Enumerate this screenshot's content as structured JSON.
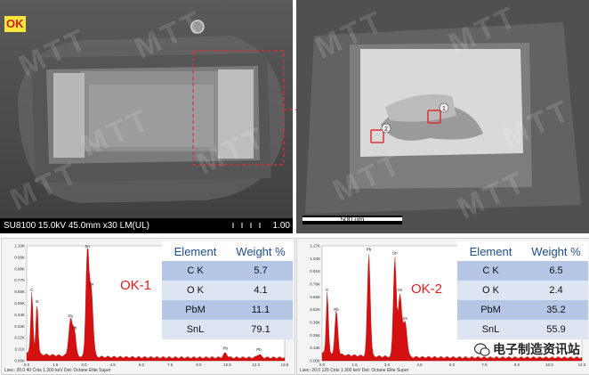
{
  "sem_left": {
    "badge": "OK",
    "info": "SU8100 15.0kV 45.0mm x30 LM(UL)",
    "mag_right": "1.00"
  },
  "sem_right": {
    "scale_label": "500 um",
    "marker_1": "1",
    "marker_2": "2"
  },
  "spectrum_1": {
    "label": "OK-1",
    "y_ticks": [
      "1.10K",
      "0.99K",
      "0.88K",
      "0.77K",
      "0.66K",
      "0.55K",
      "0.44K",
      "0.33K",
      "0.22K",
      "0.11K",
      "0.00K"
    ],
    "x_ticks": [
      "0.0",
      "1.5",
      "3.0",
      "4.5",
      "6.0",
      "7.5",
      "9.0",
      "10.5",
      "12.0",
      "13.5"
    ],
    "peak_labels": [
      "Sn",
      "Sn",
      "C",
      "O",
      "Pb",
      "Pb",
      "Pb",
      "Pb"
    ],
    "footer": "Lsec: 20.0     40 Cnts     1.300 keV     Det: Octane Elite Super",
    "table": {
      "col_element": "Element",
      "col_weight": "Weight %",
      "rows": [
        {
          "element": "C K",
          "weight": "5.7"
        },
        {
          "element": "O K",
          "weight": "4.1"
        },
        {
          "element": "PbM",
          "weight": "11.1"
        },
        {
          "element": "SnL",
          "weight": "79.1"
        }
      ]
    }
  },
  "spectrum_2": {
    "label": "OK-2",
    "y_ticks": [
      "1.17K",
      "1.04K",
      "0.91K",
      "0.78K",
      "0.65K",
      "0.52K",
      "0.39K",
      "0.26K",
      "0.13K",
      "0.00K"
    ],
    "x_ticks": [
      "0.0",
      "1.5",
      "3.0",
      "4.5",
      "6.0",
      "7.5",
      "9.0",
      "10.5",
      "12.0"
    ],
    "peak_labels": [
      "Pb",
      "Sn",
      "Sn",
      "C",
      "Pb",
      "Sn"
    ],
    "footer": "Lsec: 20.0     126 Cnts     1.300 keV     Det: Octane Elite Super",
    "table": {
      "col_element": "Element",
      "col_weight": "Weight %",
      "rows": [
        {
          "element": "C K",
          "weight": "6.5"
        },
        {
          "element": "O K",
          "weight": "2.4"
        },
        {
          "element": "PbM",
          "weight": "35.2"
        },
        {
          "element": "SnL",
          "weight": "55.9"
        }
      ]
    }
  },
  "watermark_text": "MTT",
  "wechat": "电子制造资讯站",
  "colors": {
    "accent_red": "#e21b1b",
    "table_head": "#1f4f8f",
    "row_dark": "#b5c7e5",
    "row_light": "#dde5f3"
  }
}
